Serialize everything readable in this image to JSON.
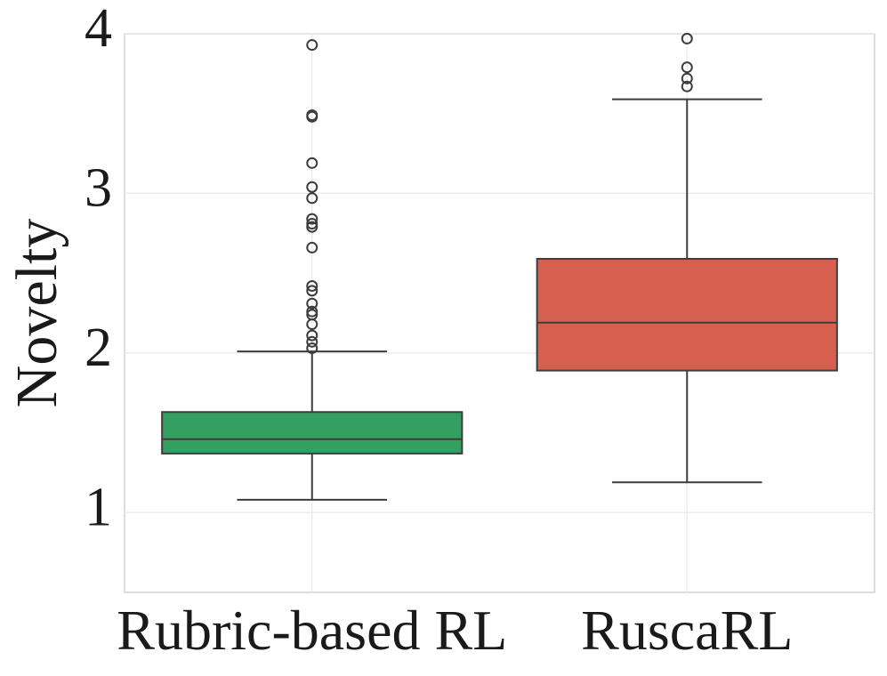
{
  "chart_data": {
    "type": "box",
    "y_label": "Novelty",
    "categories": [
      "Rubric-based RL",
      "RuscaRL"
    ],
    "boxes": [
      {
        "whislo": 1.08,
        "q1": 1.37,
        "med": 1.46,
        "q3": 1.63,
        "whishi": 2.01,
        "color": "#33a062",
        "fliers": [
          3.93,
          3.49,
          3.48,
          3.19,
          3.04,
          2.97,
          2.84,
          2.81,
          2.79,
          2.66,
          2.42,
          2.39,
          2.31,
          2.26,
          2.24,
          2.18,
          2.11,
          2.07,
          2.03
        ]
      },
      {
        "whislo": 1.19,
        "q1": 1.89,
        "med": 2.19,
        "q3": 2.59,
        "whishi": 3.59,
        "color": "#d65f50",
        "fliers": [
          3.97,
          3.79,
          3.72,
          3.67
        ]
      }
    ],
    "ylim": [
      0.5,
      4
    ],
    "yticks": [
      1,
      2,
      3,
      4
    ],
    "grid": true
  }
}
